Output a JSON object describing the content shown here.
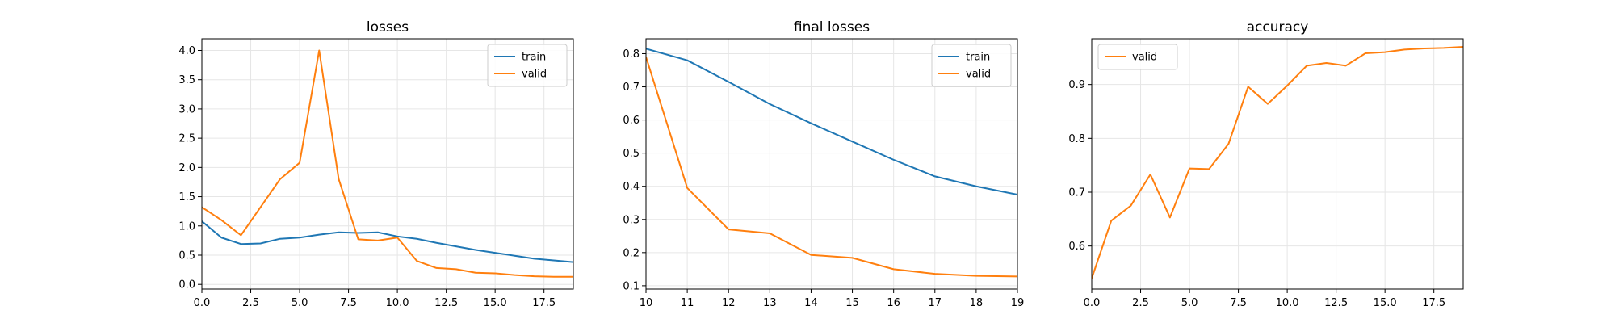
{
  "figure": {
    "background": "#ffffff"
  },
  "colors": {
    "train": "#1f77b4",
    "valid": "#ff7f0e",
    "grid": "#e6e6e6",
    "axis": "#000000"
  },
  "chart_data": [
    {
      "type": "line",
      "title": "losses",
      "xlabel": "",
      "ylabel": "",
      "xlim": [
        0,
        19
      ],
      "ylim": [
        -0.08,
        4.2
      ],
      "xticks": [
        0,
        2.5,
        5,
        7.5,
        10,
        12.5,
        15,
        17.5
      ],
      "xtick_labels": [
        "0.0",
        "2.5",
        "5.0",
        "7.5",
        "10.0",
        "12.5",
        "15.0",
        "17.5"
      ],
      "yticks": [
        0,
        0.5,
        1,
        1.5,
        2,
        2.5,
        3,
        3.5,
        4
      ],
      "ytick_labels": [
        "0.0",
        "0.5",
        "1.0",
        "1.5",
        "2.0",
        "2.5",
        "3.0",
        "3.5",
        "4.0"
      ],
      "grid": true,
      "legend": "top-right",
      "series": [
        {
          "name": "train",
          "color": "#1f77b4",
          "x": [
            0,
            1,
            2,
            3,
            4,
            5,
            6,
            7,
            8,
            9,
            10,
            11,
            12,
            13,
            14,
            15,
            16,
            17,
            18,
            19
          ],
          "y": [
            1.08,
            0.8,
            0.69,
            0.7,
            0.78,
            0.8,
            0.85,
            0.89,
            0.88,
            0.89,
            0.82,
            0.78,
            0.71,
            0.65,
            0.59,
            0.54,
            0.49,
            0.44,
            0.41,
            0.38
          ]
        },
        {
          "name": "valid",
          "color": "#ff7f0e",
          "x": [
            0,
            1,
            2,
            3,
            4,
            5,
            6,
            7,
            8,
            9,
            10,
            11,
            12,
            13,
            14,
            15,
            16,
            17,
            18,
            19
          ],
          "y": [
            1.32,
            1.1,
            0.84,
            1.32,
            1.8,
            2.08,
            4.0,
            1.8,
            0.77,
            0.75,
            0.8,
            0.4,
            0.28,
            0.26,
            0.2,
            0.19,
            0.16,
            0.14,
            0.13,
            0.13
          ]
        }
      ]
    },
    {
      "type": "line",
      "title": "final losses",
      "xlabel": "",
      "ylabel": "",
      "xlim": [
        10,
        19
      ],
      "ylim": [
        0.09,
        0.845
      ],
      "xticks": [
        10,
        11,
        12,
        13,
        14,
        15,
        16,
        17,
        18,
        19
      ],
      "xtick_labels": [
        "10",
        "11",
        "12",
        "13",
        "14",
        "15",
        "16",
        "17",
        "18",
        "19"
      ],
      "yticks": [
        0.1,
        0.2,
        0.3,
        0.4,
        0.5,
        0.6,
        0.7,
        0.8
      ],
      "ytick_labels": [
        "0.1",
        "0.2",
        "0.3",
        "0.4",
        "0.5",
        "0.6",
        "0.7",
        "0.8"
      ],
      "grid": true,
      "legend": "top-right",
      "series": [
        {
          "name": "train",
          "color": "#1f77b4",
          "x": [
            10,
            11,
            12,
            13,
            14,
            15,
            16,
            17,
            18,
            19
          ],
          "y": [
            0.815,
            0.78,
            0.715,
            0.648,
            0.59,
            0.535,
            0.48,
            0.43,
            0.4,
            0.375
          ]
        },
        {
          "name": "valid",
          "color": "#ff7f0e",
          "x": [
            10,
            11,
            12,
            13,
            14,
            15,
            16,
            17,
            18,
            19
          ],
          "y": [
            0.79,
            0.395,
            0.27,
            0.258,
            0.193,
            0.184,
            0.15,
            0.136,
            0.13,
            0.128
          ]
        }
      ]
    },
    {
      "type": "line",
      "title": "accuracy",
      "xlabel": "",
      "ylabel": "",
      "xlim": [
        0,
        19
      ],
      "ylim": [
        0.52,
        0.985
      ],
      "xticks": [
        0,
        2.5,
        5,
        7.5,
        10,
        12.5,
        15,
        17.5
      ],
      "xtick_labels": [
        "0.0",
        "2.5",
        "5.0",
        "7.5",
        "10.0",
        "12.5",
        "15.0",
        "17.5"
      ],
      "yticks": [
        0.6,
        0.7,
        0.8,
        0.9
      ],
      "ytick_labels": [
        "0.6",
        "0.7",
        "0.8",
        "0.9"
      ],
      "grid": true,
      "legend": "top-left",
      "series": [
        {
          "name": "valid",
          "color": "#ff7f0e",
          "x": [
            0,
            1,
            2,
            3,
            4,
            5,
            6,
            7,
            8,
            9,
            10,
            11,
            12,
            13,
            14,
            15,
            16,
            17,
            18,
            19
          ],
          "y": [
            0.54,
            0.647,
            0.675,
            0.733,
            0.653,
            0.744,
            0.743,
            0.79,
            0.896,
            0.864,
            0.898,
            0.935,
            0.94,
            0.935,
            0.958,
            0.96,
            0.965,
            0.967,
            0.968,
            0.97
          ]
        }
      ]
    }
  ]
}
